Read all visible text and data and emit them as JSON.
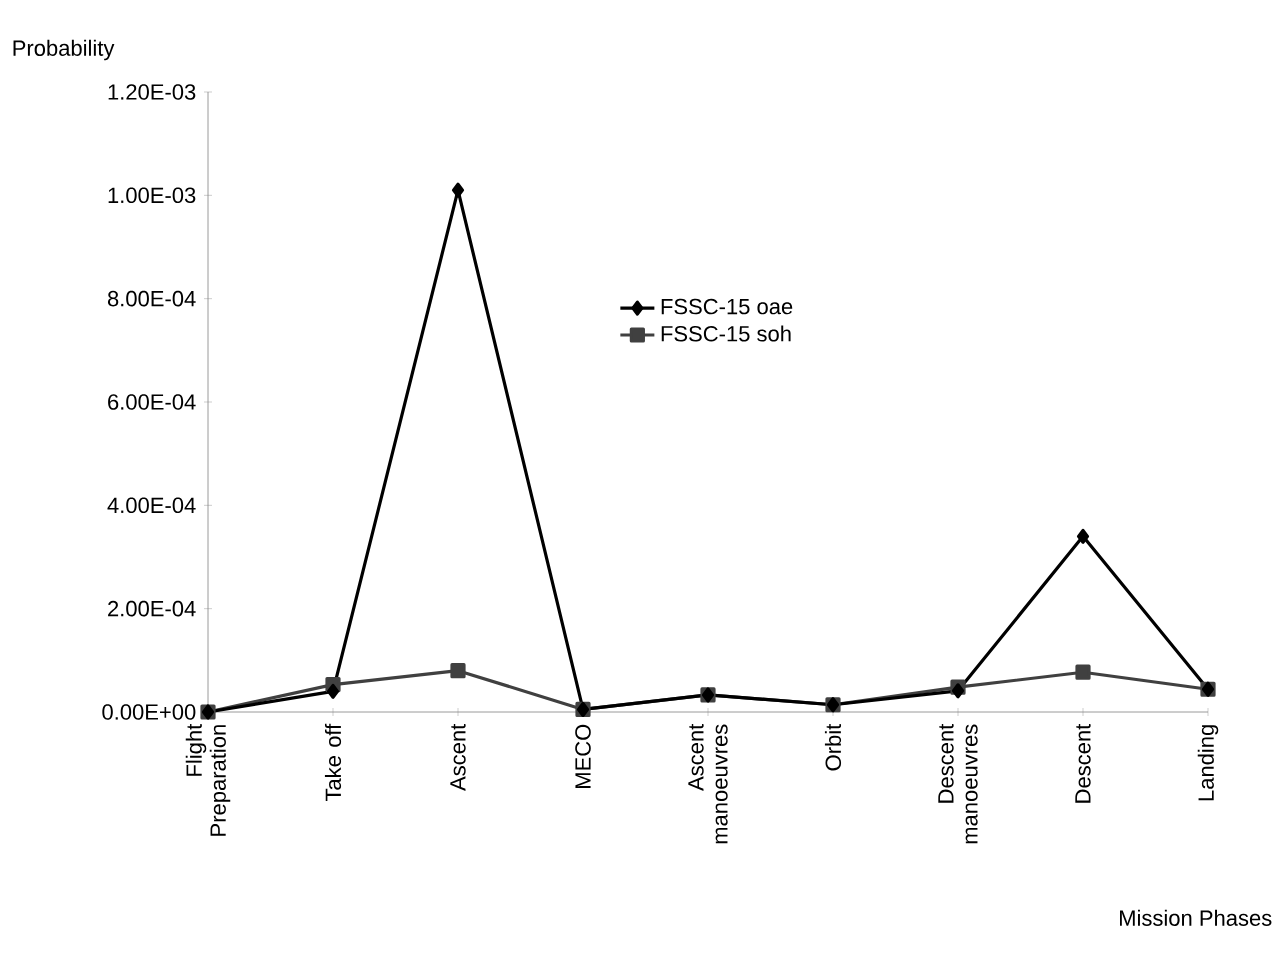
{
  "chart_data": {
    "type": "line",
    "ylabel": "Probability",
    "xlabel": "Mission Phases",
    "categories": [
      "Flight Preparation",
      "Take off",
      "Ascent",
      "MECO",
      "Ascent manoeuvres",
      "Orbit",
      "Descent manoeuvres",
      "Descent",
      "Landing"
    ],
    "series": [
      {
        "name": "FSSC-15 oae",
        "color": "#000000",
        "marker": "diamond",
        "values": [
          0,
          4e-05,
          0.00101,
          5e-06,
          3.3e-05,
          1.4e-05,
          4.1e-05,
          0.00034,
          4.4e-05
        ]
      },
      {
        "name": "FSSC-15 soh",
        "color": "#404040",
        "marker": "square",
        "values": [
          0,
          5.3e-05,
          8e-05,
          5e-06,
          3.3e-05,
          1.4e-05,
          4.8e-05,
          7.7e-05,
          4.4e-05
        ]
      }
    ],
    "ylim": [
      0,
      0.0012
    ],
    "yticks": [
      {
        "value": 0,
        "label": "0.00E+00"
      },
      {
        "value": 0.0002,
        "label": "2.00E-04"
      },
      {
        "value": 0.0004,
        "label": "4.00E-04"
      },
      {
        "value": 0.0006,
        "label": "6.00E-04"
      },
      {
        "value": 0.0008,
        "label": "8.00E-04"
      },
      {
        "value": 0.001,
        "label": "1.00E-03"
      },
      {
        "value": 0.0012,
        "label": "1.20E-03"
      }
    ],
    "legend": "top",
    "grid": false,
    "line_style": "solid"
  }
}
